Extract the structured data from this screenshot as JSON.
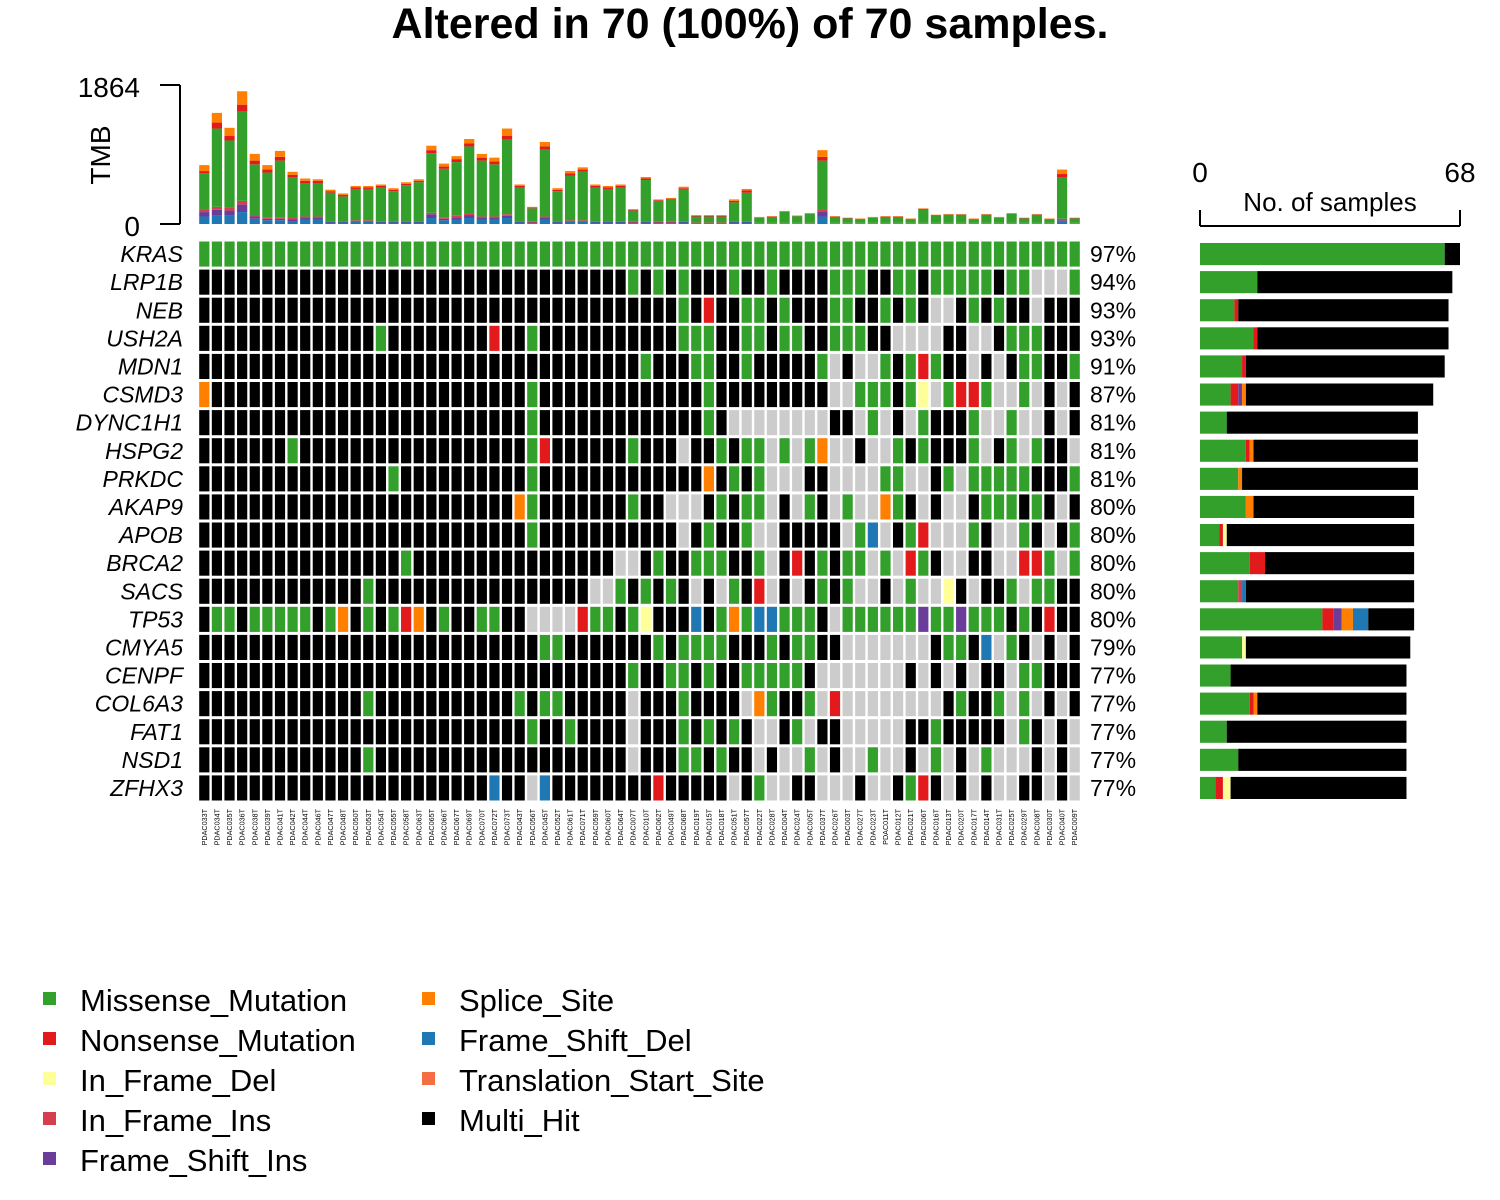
{
  "chart_data": {
    "type": "oncoplot",
    "title": "Altered in 70 (100%) of 70 samples.",
    "tmb": {
      "ylabel": "TMB",
      "ylim": [
        0,
        1864
      ],
      "tick_labels": [
        "1864",
        "0"
      ]
    },
    "side": {
      "xlabel": "No. of samples",
      "xlim": [
        0,
        68
      ],
      "tick_labels": [
        "0",
        "68"
      ]
    },
    "colors": {
      "Missense_Mutation": "#33a02c",
      "Nonsense_Mutation": "#e31a1c",
      "In_Frame_Del": "#ffff99",
      "In_Frame_Ins": "#d53e4f",
      "Frame_Shift_Ins": "#6a3d9a",
      "Splice_Site": "#ff7f00",
      "Frame_Shift_Del": "#1f78b4",
      "Translation_Start_Site": "#f46d43",
      "Multi_Hit": "#000000",
      "none": "#cccccc"
    },
    "legend": [
      "Missense_Mutation",
      "Nonsense_Mutation",
      "In_Frame_Del",
      "In_Frame_Ins",
      "Frame_Shift_Ins",
      "Splice_Site",
      "Frame_Shift_Del",
      "Translation_Start_Site",
      "Multi_Hit"
    ],
    "samples": [
      "PDAC033T",
      "PDAC034T",
      "PDAC035T",
      "PDAC036T",
      "PDAC038T",
      "PDAC039T",
      "PDAC041T",
      "PDAC042T",
      "PDAC044T",
      "PDAC046T",
      "PDAC047T",
      "PDAC048T",
      "PDAC050T",
      "PDAC053T",
      "PDAC054T",
      "PDAC055T",
      "PDAC058T",
      "PDAC063T",
      "PDAC065T",
      "PDAC066T",
      "PDAC067T",
      "PDAC069T",
      "PDAC070T",
      "PDAC072T",
      "PDAC073T",
      "PDAC043T",
      "PDAC056T",
      "PDAC045T",
      "PDAC052T",
      "PDAC061T",
      "PDAC071T",
      "PDAC059T",
      "PDAC060T",
      "PDAC064T",
      "PDAC007T",
      "PDAC010T",
      "PDAC062T",
      "PDAC049T",
      "PDAC068T",
      "PDAC019T",
      "PDAC015T",
      "PDAC018T",
      "PDAC051T",
      "PDAC057T",
      "PDAC022T",
      "PDAC028T",
      "PDAC004T",
      "PDAC024T",
      "PDAC005T",
      "PDAC037T",
      "PDAC026T",
      "PDAC003T",
      "PDAC027T",
      "PDAC023T",
      "PDAC011T",
      "PDAC012T",
      "PDAC021T",
      "PDAC006T",
      "PDAC016T",
      "PDAC013T",
      "PDAC020T",
      "PDAC017T",
      "PDAC014T",
      "PDAC031T",
      "PDAC025T",
      "PDAC029T",
      "PDAC008T",
      "PDAC030T",
      "PDAC040T",
      "PDAC009T"
    ],
    "tmb_values": [
      {
        "mis": 480,
        "non": 30,
        "spl": 80,
        "fsd": 100,
        "fsi": 60,
        "other": 40
      },
      {
        "mis": 1050,
        "non": 80,
        "spl": 130,
        "fsd": 120,
        "fsi": 70,
        "other": 40
      },
      {
        "mis": 900,
        "non": 60,
        "spl": 110,
        "fsd": 120,
        "fsi": 60,
        "other": 40
      },
      {
        "mis": 1200,
        "non": 90,
        "spl": 180,
        "fsd": 160,
        "fsi": 100,
        "other": 50
      },
      {
        "mis": 680,
        "non": 50,
        "spl": 90,
        "fsd": 70,
        "fsi": 30,
        "other": 20
      },
      {
        "mis": 600,
        "non": 40,
        "spl": 60,
        "fsd": 50,
        "fsi": 20,
        "other": 20
      },
      {
        "mis": 760,
        "non": 50,
        "spl": 80,
        "fsd": 50,
        "fsi": 20,
        "other": 20
      },
      {
        "mis": 550,
        "non": 30,
        "spl": 40,
        "fsd": 40,
        "fsi": 20,
        "other": 20
      },
      {
        "mis": 450,
        "non": 30,
        "spl": 30,
        "fsd": 60,
        "fsi": 20,
        "other": 20
      },
      {
        "mis": 450,
        "non": 30,
        "spl": 20,
        "fsd": 60,
        "fsi": 20,
        "other": 20
      },
      {
        "mis": 380,
        "non": 20,
        "spl": 20,
        "fsd": 20,
        "fsi": 10,
        "other": 10
      },
      {
        "mis": 330,
        "non": 20,
        "spl": 20,
        "fsd": 20,
        "fsi": 10,
        "other": 10
      },
      {
        "mis": 420,
        "non": 20,
        "spl": 20,
        "fsd": 30,
        "fsi": 10,
        "other": 10
      },
      {
        "mis": 420,
        "non": 20,
        "spl": 20,
        "fsd": 30,
        "fsi": 10,
        "other": 10
      },
      {
        "mis": 450,
        "non": 20,
        "spl": 20,
        "fsd": 20,
        "fsi": 10,
        "other": 10
      },
      {
        "mis": 400,
        "non": 20,
        "spl": 20,
        "fsd": 20,
        "fsi": 10,
        "other": 10
      },
      {
        "mis": 480,
        "non": 20,
        "spl": 20,
        "fsd": 20,
        "fsi": 10,
        "other": 10
      },
      {
        "mis": 520,
        "non": 20,
        "spl": 20,
        "fsd": 20,
        "fsi": 10,
        "other": 10
      },
      {
        "mis": 800,
        "non": 40,
        "spl": 60,
        "fsd": 80,
        "fsi": 50,
        "other": 20
      },
      {
        "mis": 650,
        "non": 30,
        "spl": 40,
        "fsd": 50,
        "fsi": 20,
        "other": 20
      },
      {
        "mis": 720,
        "non": 40,
        "spl": 40,
        "fsd": 60,
        "fsi": 30,
        "other": 20
      },
      {
        "mis": 900,
        "non": 40,
        "spl": 60,
        "fsd": 80,
        "fsi": 40,
        "other": 20
      },
      {
        "mis": 750,
        "non": 40,
        "spl": 50,
        "fsd": 60,
        "fsi": 20,
        "other": 20
      },
      {
        "mis": 700,
        "non": 40,
        "spl": 50,
        "fsd": 60,
        "fsi": 20,
        "other": 20
      },
      {
        "mis": 1000,
        "non": 50,
        "spl": 100,
        "fsd": 80,
        "fsi": 30,
        "other": 20
      },
      {
        "mis": 450,
        "non": 20,
        "spl": 20,
        "fsd": 20,
        "fsi": 10,
        "other": 10
      },
      {
        "mis": 180,
        "non": 10,
        "spl": 10,
        "fsd": 10,
        "fsi": 10,
        "other": 10
      },
      {
        "mis": 900,
        "non": 40,
        "spl": 60,
        "fsd": 60,
        "fsi": 20,
        "other": 20
      },
      {
        "mis": 400,
        "non": 20,
        "spl": 20,
        "fsd": 20,
        "fsi": 10,
        "other": 10
      },
      {
        "mis": 600,
        "non": 30,
        "spl": 30,
        "fsd": 30,
        "fsi": 10,
        "other": 10
      },
      {
        "mis": 650,
        "non": 30,
        "spl": 30,
        "fsd": 30,
        "fsi": 10,
        "other": 10
      },
      {
        "mis": 450,
        "non": 20,
        "spl": 20,
        "fsd": 20,
        "fsi": 10,
        "other": 10
      },
      {
        "mis": 430,
        "non": 20,
        "spl": 20,
        "fsd": 20,
        "fsi": 10,
        "other": 10
      },
      {
        "mis": 450,
        "non": 20,
        "spl": 20,
        "fsd": 20,
        "fsi": 10,
        "other": 10
      },
      {
        "mis": 150,
        "non": 10,
        "spl": 10,
        "fsd": 10,
        "fsi": 10,
        "other": 10
      },
      {
        "mis": 550,
        "non": 20,
        "spl": 20,
        "fsd": 20,
        "fsi": 10,
        "other": 10
      },
      {
        "mis": 280,
        "non": 10,
        "spl": 10,
        "fsd": 10,
        "fsi": 10,
        "other": 10
      },
      {
        "mis": 300,
        "non": 10,
        "spl": 10,
        "fsd": 10,
        "fsi": 10,
        "other": 10
      },
      {
        "mis": 420,
        "non": 20,
        "spl": 20,
        "fsd": 20,
        "fsi": 10,
        "other": 10
      },
      {
        "mis": 80,
        "non": 10,
        "spl": 10,
        "fsd": 10,
        "fsi": 5,
        "other": 5
      },
      {
        "mis": 80,
        "non": 10,
        "spl": 10,
        "fsd": 10,
        "fsi": 5,
        "other": 5
      },
      {
        "mis": 80,
        "non": 10,
        "spl": 10,
        "fsd": 10,
        "fsi": 5,
        "other": 5
      },
      {
        "mis": 250,
        "non": 20,
        "spl": 20,
        "fsd": 20,
        "fsi": 10,
        "other": 10
      },
      {
        "mis": 380,
        "non": 30,
        "spl": 20,
        "fsd": 20,
        "fsi": 10,
        "other": 10
      },
      {
        "mis": 70,
        "non": 5,
        "spl": 5,
        "fsd": 5,
        "fsi": 5,
        "other": 5
      },
      {
        "mis": 80,
        "non": 5,
        "spl": 5,
        "fsd": 5,
        "fsi": 5,
        "other": 5
      },
      {
        "mis": 150,
        "non": 5,
        "spl": 5,
        "fsd": 5,
        "fsi": 5,
        "other": 5
      },
      {
        "mis": 90,
        "non": 5,
        "spl": 5,
        "fsd": 5,
        "fsi": 5,
        "other": 5
      },
      {
        "mis": 120,
        "non": 5,
        "spl": 5,
        "fsd": 5,
        "fsi": 5,
        "other": 5
      },
      {
        "mis": 650,
        "non": 50,
        "spl": 90,
        "fsd": 100,
        "fsi": 70,
        "other": 30
      },
      {
        "mis": 80,
        "non": 5,
        "spl": 5,
        "fsd": 5,
        "fsi": 5,
        "other": 5
      },
      {
        "mis": 60,
        "non": 5,
        "spl": 5,
        "fsd": 5,
        "fsi": 5,
        "other": 5
      },
      {
        "mis": 50,
        "non": 5,
        "spl": 5,
        "fsd": 5,
        "fsi": 5,
        "other": 5
      },
      {
        "mis": 70,
        "non": 5,
        "spl": 5,
        "fsd": 5,
        "fsi": 5,
        "other": 5
      },
      {
        "mis": 80,
        "non": 5,
        "spl": 5,
        "fsd": 5,
        "fsi": 5,
        "other": 5
      },
      {
        "mis": 80,
        "non": 5,
        "spl": 5,
        "fsd": 5,
        "fsi": 5,
        "other": 5
      },
      {
        "mis": 50,
        "non": 5,
        "spl": 5,
        "fsd": 5,
        "fsi": 5,
        "other": 5
      },
      {
        "mis": 180,
        "non": 10,
        "spl": 5,
        "fsd": 5,
        "fsi": 5,
        "other": 5
      },
      {
        "mis": 100,
        "non": 5,
        "spl": 5,
        "fsd": 5,
        "fsi": 5,
        "other": 5
      },
      {
        "mis": 110,
        "non": 5,
        "spl": 5,
        "fsd": 5,
        "fsi": 5,
        "other": 5
      },
      {
        "mis": 110,
        "non": 5,
        "spl": 5,
        "fsd": 5,
        "fsi": 5,
        "other": 5
      },
      {
        "mis": 50,
        "non": 5,
        "spl": 5,
        "fsd": 5,
        "fsi": 5,
        "other": 5
      },
      {
        "mis": 110,
        "non": 5,
        "spl": 5,
        "fsd": 5,
        "fsi": 5,
        "other": 5
      },
      {
        "mis": 70,
        "non": 5,
        "spl": 5,
        "fsd": 5,
        "fsi": 5,
        "other": 5
      },
      {
        "mis": 120,
        "non": 5,
        "spl": 5,
        "fsd": 5,
        "fsi": 5,
        "other": 5
      },
      {
        "mis": 60,
        "non": 5,
        "spl": 5,
        "fsd": 5,
        "fsi": 5,
        "other": 5
      },
      {
        "mis": 110,
        "non": 5,
        "spl": 5,
        "fsd": 5,
        "fsi": 5,
        "other": 5
      },
      {
        "mis": 50,
        "non": 5,
        "spl": 5,
        "fsd": 5,
        "fsi": 5,
        "other": 5
      },
      {
        "mis": 560,
        "non": 40,
        "spl": 60,
        "fsd": 30,
        "fsi": 20,
        "other": 20
      },
      {
        "mis": 60,
        "non": 5,
        "spl": 5,
        "fsd": 5,
        "fsi": 5,
        "other": 5
      }
    ],
    "genes": [
      {
        "name": "KRAS",
        "pct": "97%",
        "sample_counts": {
          "mis": 64,
          "multi": 4
        }
      },
      {
        "name": "LRP1B",
        "pct": "94%",
        "sample_counts": {
          "mis": 15,
          "multi": 51
        }
      },
      {
        "name": "NEB",
        "pct": "93%",
        "sample_counts": {
          "mis": 9,
          "non": 1,
          "multi": 55
        }
      },
      {
        "name": "USH2A",
        "pct": "93%",
        "sample_counts": {
          "mis": 14,
          "non": 1,
          "multi": 50
        }
      },
      {
        "name": "MDN1",
        "pct": "91%",
        "sample_counts": {
          "mis": 11,
          "non": 1,
          "multi": 52
        }
      },
      {
        "name": "CSMD3",
        "pct": "87%",
        "sample_counts": {
          "mis": 8,
          "fsi": 1,
          "non": 2,
          "spl": 1,
          "multi": 49
        }
      },
      {
        "name": "DYNC1H1",
        "pct": "81%",
        "sample_counts": {
          "mis": 7,
          "multi": 50
        }
      },
      {
        "name": "HSPG2",
        "pct": "81%",
        "sample_counts": {
          "mis": 12,
          "non": 1,
          "spl": 1,
          "multi": 43
        }
      },
      {
        "name": "PRKDC",
        "pct": "81%",
        "sample_counts": {
          "mis": 10,
          "spl": 1,
          "multi": 46
        }
      },
      {
        "name": "AKAP9",
        "pct": "80%",
        "sample_counts": {
          "mis": 12,
          "spl": 2,
          "multi": 42
        }
      },
      {
        "name": "APOB",
        "pct": "80%",
        "sample_counts": {
          "mis": 5,
          "non": 1,
          "ifd": 1,
          "multi": 49
        }
      },
      {
        "name": "BRCA2",
        "pct": "80%",
        "sample_counts": {
          "mis": 13,
          "non": 4,
          "multi": 39
        }
      },
      {
        "name": "SACS",
        "pct": "80%",
        "sample_counts": {
          "mis": 10,
          "ins": 1,
          "fsd": 1,
          "multi": 44
        }
      },
      {
        "name": "TP53",
        "pct": "80%",
        "sample_counts": {
          "mis": 32,
          "non": 3,
          "fsi": 2,
          "spl": 3,
          "fsd": 4,
          "multi": 12
        }
      },
      {
        "name": "CMYA5",
        "pct": "79%",
        "sample_counts": {
          "mis": 11,
          "ifd": 1,
          "multi": 43
        }
      },
      {
        "name": "CENPF",
        "pct": "77%",
        "sample_counts": {
          "mis": 8,
          "multi": 46
        }
      },
      {
        "name": "COL6A3",
        "pct": "77%",
        "sample_counts": {
          "mis": 13,
          "non": 1,
          "spl": 1,
          "multi": 39
        }
      },
      {
        "name": "FAT1",
        "pct": "77%",
        "sample_counts": {
          "mis": 7,
          "multi": 47
        }
      },
      {
        "name": "NSD1",
        "pct": "77%",
        "sample_counts": {
          "mis": 10,
          "multi": 44
        }
      },
      {
        "name": "ZFHX3",
        "pct": "77%",
        "sample_counts": {
          "mis": 4,
          "non": 2,
          "ifd": 2,
          "multi": 46
        }
      }
    ],
    "matrix": [
      "MMMMMMMMMMMMMMMMMMMMMMMMMMMMMMMMMMMMMMMMMMMMMMMMMMMMMMMMMMMMMMMMMMMMMM",
      "XXXXXXXXXXXXXXXXXXXXXXXXXXXXXXXXXXMXMXMXXXMXXMXXXXMMMXXMMXMMMMMXMM...M",
      "XXXXXXXXXXXXXXXXXXXXXXXXXXXXXXXXXXXXXXMXNXXMMXMXXXMMXXMXMX..XMXMXX.XXX",
      "XXXXXXXXXXXXXXMXXXXXXXXNXXMXXXXXXXXXXXMMMXXMMXMMXXMMMXX....XX..XMMMXXX",
      "XXXXXXXXXXXXXXXXXXXXXXXXXXXXXXXXXXXMXXXMMXXMXXXXXM.X..MXMNMXX.X.XMMXXM",
      "SXXXXXXXXXXXXXXXXXXXXXXXXXMXXXXXXXXXXXXXMXXXXXXXXX..MMMXMF.MNNM..M.X.X",
      "XXXXXXXXXXXXXXXXXXXXXXXXXXMXXXXXXXXXXXXXMX........XX.M.X.MXXXM..M..X.X",
      "XXXXXXXMXXXXXXXXXXXXXXXXXXMNXXXXXXMXXX.XXMXMM.M.MS..X..MXMXXXM.XM.MXX.",
      "XXXXXXXXXXXXXXXMXXXXXXXXXXMXXXXXXXXXXXXXSXMXM...XX....MM..XM.MMMMMXXXM",
      "XXXXXXXXXXXXXXXXXXXXXXXXXSMXXXXXXXMXX...XMXMM.X.MX.M..SMX.X..XMMMXMX.X",
      "XXXXXXXXXXXXXXXXXXXXXXXXXXMXXXXXXXXXXX.XMXXM..XXXXX.MD.XMN...MX..MX.XM",
      "XXXXXXXXXXXXXXXXMXXXXXXXXXXXXXXXX..XMXXMMMXXM.XNXMXMM.M.NMX..XX..NNM.M",
      "XXXXXXXXXXXXXMXXXXXXXXXXXXXXXXX..MXMXMX.X.MXN.X.XMXM..X.M..FX.XXM.MMXX",
      "XMMXMMMMMXMSXMXMNSXMXXMMXX....NMMXMFXXXDXMSMDDMMMX.MMMMMMIMMIMMMXMXNXX",
      "XXXXXXXXXXXXXXXXXXXXXXXXXXXMMXXXXXXXMXMMMMXXXMXMMXX.......XMMXD.MX.X.X",
      "XXXXXXXXXXXXXXXXXXXXXXXXXXXXXXXXXXMXXMMXMXXMMMMMX.......X.X.X.XX.MMXXX",
      "XXXXXXXXXXXXXMXXXXXXXXXXXMXMMXXXXX.XXXMXXXX.SMXXM.N........XMXXM.M.X.X",
      "XXXXXXXXXXXXXXXXXXXXXXXXXXMXXMXXXX.XXXMXMXMX..XM.XX.....XXMXXXXX.MX.X.",
      "XXXXXXXXXXXXXMXXXXXXXXXXXXXXXXXXXX.XXXMMXMXX.X..M.X..M..X.M.X.M...X.X.",
      "XXXXXXXXXXXXXXXXXXXXXXXDXX.DXXXXXXXXNXXXXX.XM..XX...X..XMNX.X.X..XX.X."
    ]
  }
}
